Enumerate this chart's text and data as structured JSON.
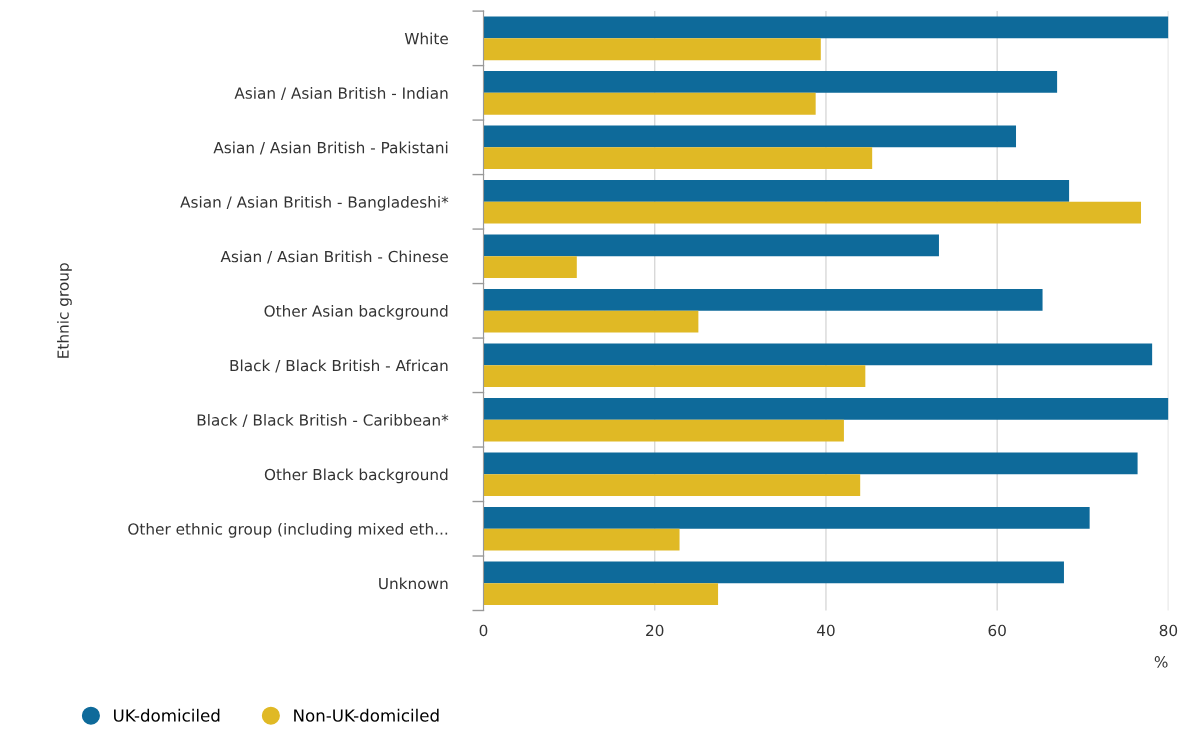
{
  "chart_data": {
    "type": "bar",
    "orientation": "horizontal",
    "xlabel": "%",
    "ylabel": "Ethnic group",
    "categories": [
      "White",
      "Asian / Asian British - Indian",
      "Asian / Asian British - Pakistani",
      "Asian / Asian British - Bangladeshi*",
      "Asian / Asian British - Chinese",
      "Other Asian background",
      "Black / Black British - African",
      "Black / Black British - Caribbean*",
      "Other Black background",
      "Other ethnic group (including mixed eth...",
      "Unknown"
    ],
    "series": [
      {
        "name": "UK-domiciled",
        "color": "#0e6a9a",
        "values": [
          80.0,
          67.0,
          62.2,
          68.4,
          53.2,
          65.3,
          78.1,
          80.0,
          76.4,
          70.8,
          67.8
        ]
      },
      {
        "name": "Non-UK-domiciled",
        "color": "#e0b925",
        "values": [
          39.4,
          38.8,
          45.4,
          76.8,
          10.9,
          25.1,
          44.6,
          42.1,
          44.0,
          22.9,
          27.4
        ]
      }
    ],
    "xlim": [
      0,
      80
    ],
    "xticks": [
      0,
      20,
      40,
      60,
      80
    ],
    "grid": "x",
    "legend": "bottom left"
  }
}
